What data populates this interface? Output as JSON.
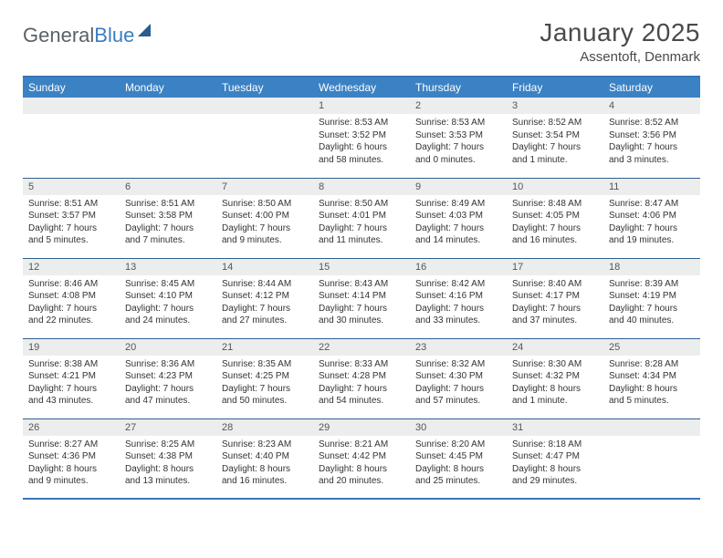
{
  "brand": {
    "part1": "General",
    "part2": "Blue"
  },
  "title": "January 2025",
  "location": "Assentoft, Denmark",
  "colors": {
    "header_bg": "#3b82c4",
    "header_text": "#ffffff",
    "border": "#2f5f8f",
    "daynum_bg": "#eceeee",
    "text": "#333333",
    "brand_gray": "#5a6268",
    "brand_blue": "#3b7ec0"
  },
  "day_headers": [
    "Sunday",
    "Monday",
    "Tuesday",
    "Wednesday",
    "Thursday",
    "Friday",
    "Saturday"
  ],
  "weeks": [
    [
      {
        "n": "",
        "lines": []
      },
      {
        "n": "",
        "lines": []
      },
      {
        "n": "",
        "lines": []
      },
      {
        "n": "1",
        "lines": [
          "Sunrise: 8:53 AM",
          "Sunset: 3:52 PM",
          "Daylight: 6 hours",
          "and 58 minutes."
        ]
      },
      {
        "n": "2",
        "lines": [
          "Sunrise: 8:53 AM",
          "Sunset: 3:53 PM",
          "Daylight: 7 hours",
          "and 0 minutes."
        ]
      },
      {
        "n": "3",
        "lines": [
          "Sunrise: 8:52 AM",
          "Sunset: 3:54 PM",
          "Daylight: 7 hours",
          "and 1 minute."
        ]
      },
      {
        "n": "4",
        "lines": [
          "Sunrise: 8:52 AM",
          "Sunset: 3:56 PM",
          "Daylight: 7 hours",
          "and 3 minutes."
        ]
      }
    ],
    [
      {
        "n": "5",
        "lines": [
          "Sunrise: 8:51 AM",
          "Sunset: 3:57 PM",
          "Daylight: 7 hours",
          "and 5 minutes."
        ]
      },
      {
        "n": "6",
        "lines": [
          "Sunrise: 8:51 AM",
          "Sunset: 3:58 PM",
          "Daylight: 7 hours",
          "and 7 minutes."
        ]
      },
      {
        "n": "7",
        "lines": [
          "Sunrise: 8:50 AM",
          "Sunset: 4:00 PM",
          "Daylight: 7 hours",
          "and 9 minutes."
        ]
      },
      {
        "n": "8",
        "lines": [
          "Sunrise: 8:50 AM",
          "Sunset: 4:01 PM",
          "Daylight: 7 hours",
          "and 11 minutes."
        ]
      },
      {
        "n": "9",
        "lines": [
          "Sunrise: 8:49 AM",
          "Sunset: 4:03 PM",
          "Daylight: 7 hours",
          "and 14 minutes."
        ]
      },
      {
        "n": "10",
        "lines": [
          "Sunrise: 8:48 AM",
          "Sunset: 4:05 PM",
          "Daylight: 7 hours",
          "and 16 minutes."
        ]
      },
      {
        "n": "11",
        "lines": [
          "Sunrise: 8:47 AM",
          "Sunset: 4:06 PM",
          "Daylight: 7 hours",
          "and 19 minutes."
        ]
      }
    ],
    [
      {
        "n": "12",
        "lines": [
          "Sunrise: 8:46 AM",
          "Sunset: 4:08 PM",
          "Daylight: 7 hours",
          "and 22 minutes."
        ]
      },
      {
        "n": "13",
        "lines": [
          "Sunrise: 8:45 AM",
          "Sunset: 4:10 PM",
          "Daylight: 7 hours",
          "and 24 minutes."
        ]
      },
      {
        "n": "14",
        "lines": [
          "Sunrise: 8:44 AM",
          "Sunset: 4:12 PM",
          "Daylight: 7 hours",
          "and 27 minutes."
        ]
      },
      {
        "n": "15",
        "lines": [
          "Sunrise: 8:43 AM",
          "Sunset: 4:14 PM",
          "Daylight: 7 hours",
          "and 30 minutes."
        ]
      },
      {
        "n": "16",
        "lines": [
          "Sunrise: 8:42 AM",
          "Sunset: 4:16 PM",
          "Daylight: 7 hours",
          "and 33 minutes."
        ]
      },
      {
        "n": "17",
        "lines": [
          "Sunrise: 8:40 AM",
          "Sunset: 4:17 PM",
          "Daylight: 7 hours",
          "and 37 minutes."
        ]
      },
      {
        "n": "18",
        "lines": [
          "Sunrise: 8:39 AM",
          "Sunset: 4:19 PM",
          "Daylight: 7 hours",
          "and 40 minutes."
        ]
      }
    ],
    [
      {
        "n": "19",
        "lines": [
          "Sunrise: 8:38 AM",
          "Sunset: 4:21 PM",
          "Daylight: 7 hours",
          "and 43 minutes."
        ]
      },
      {
        "n": "20",
        "lines": [
          "Sunrise: 8:36 AM",
          "Sunset: 4:23 PM",
          "Daylight: 7 hours",
          "and 47 minutes."
        ]
      },
      {
        "n": "21",
        "lines": [
          "Sunrise: 8:35 AM",
          "Sunset: 4:25 PM",
          "Daylight: 7 hours",
          "and 50 minutes."
        ]
      },
      {
        "n": "22",
        "lines": [
          "Sunrise: 8:33 AM",
          "Sunset: 4:28 PM",
          "Daylight: 7 hours",
          "and 54 minutes."
        ]
      },
      {
        "n": "23",
        "lines": [
          "Sunrise: 8:32 AM",
          "Sunset: 4:30 PM",
          "Daylight: 7 hours",
          "and 57 minutes."
        ]
      },
      {
        "n": "24",
        "lines": [
          "Sunrise: 8:30 AM",
          "Sunset: 4:32 PM",
          "Daylight: 8 hours",
          "and 1 minute."
        ]
      },
      {
        "n": "25",
        "lines": [
          "Sunrise: 8:28 AM",
          "Sunset: 4:34 PM",
          "Daylight: 8 hours",
          "and 5 minutes."
        ]
      }
    ],
    [
      {
        "n": "26",
        "lines": [
          "Sunrise: 8:27 AM",
          "Sunset: 4:36 PM",
          "Daylight: 8 hours",
          "and 9 minutes."
        ]
      },
      {
        "n": "27",
        "lines": [
          "Sunrise: 8:25 AM",
          "Sunset: 4:38 PM",
          "Daylight: 8 hours",
          "and 13 minutes."
        ]
      },
      {
        "n": "28",
        "lines": [
          "Sunrise: 8:23 AM",
          "Sunset: 4:40 PM",
          "Daylight: 8 hours",
          "and 16 minutes."
        ]
      },
      {
        "n": "29",
        "lines": [
          "Sunrise: 8:21 AM",
          "Sunset: 4:42 PM",
          "Daylight: 8 hours",
          "and 20 minutes."
        ]
      },
      {
        "n": "30",
        "lines": [
          "Sunrise: 8:20 AM",
          "Sunset: 4:45 PM",
          "Daylight: 8 hours",
          "and 25 minutes."
        ]
      },
      {
        "n": "31",
        "lines": [
          "Sunrise: 8:18 AM",
          "Sunset: 4:47 PM",
          "Daylight: 8 hours",
          "and 29 minutes."
        ]
      },
      {
        "n": "",
        "lines": []
      }
    ]
  ]
}
